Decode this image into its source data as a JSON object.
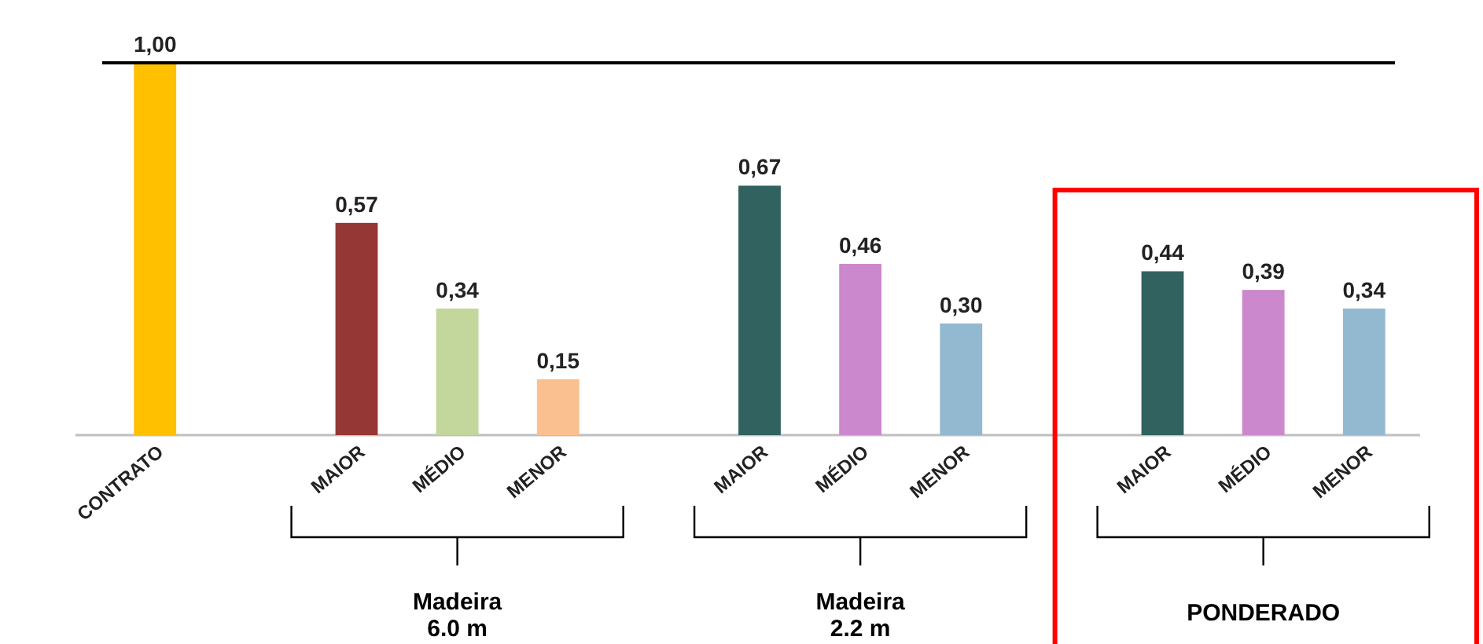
{
  "chart_data": {
    "type": "bar",
    "categories": [
      "CONTRATO",
      null,
      "MAIOR",
      "MÉDIO",
      "MENOR",
      null,
      "MAIOR",
      "MÉDIO",
      "MENOR",
      null,
      "MAIOR",
      "MÉDIO",
      "MENOR"
    ],
    "values": [
      1.0,
      null,
      0.57,
      0.34,
      0.15,
      null,
      0.67,
      0.46,
      0.3,
      null,
      0.44,
      0.39,
      0.34
    ],
    "colors": [
      "#ffc000",
      null,
      "#953735",
      "#c3d69b",
      "#fac090",
      null,
      "#31625f",
      "#cc88cc",
      "#93b9d0",
      null,
      "#31625f",
      "#cc88cc",
      "#93b9d0"
    ],
    "value_labels": [
      "1,00",
      null,
      "0,57",
      "0,34",
      "0,15",
      null,
      "0,67",
      "0,46",
      "0,30",
      null,
      "0,44",
      "0,39",
      "0,34"
    ],
    "ref_lines": [
      {
        "axis": "y",
        "value": 1.0,
        "color": "#000000"
      }
    ],
    "annotations": [
      "Madeira 6.0 m",
      "Madeira 2.2 m",
      "PONDERADO"
    ],
    "tick_labels": "x"
  }
}
